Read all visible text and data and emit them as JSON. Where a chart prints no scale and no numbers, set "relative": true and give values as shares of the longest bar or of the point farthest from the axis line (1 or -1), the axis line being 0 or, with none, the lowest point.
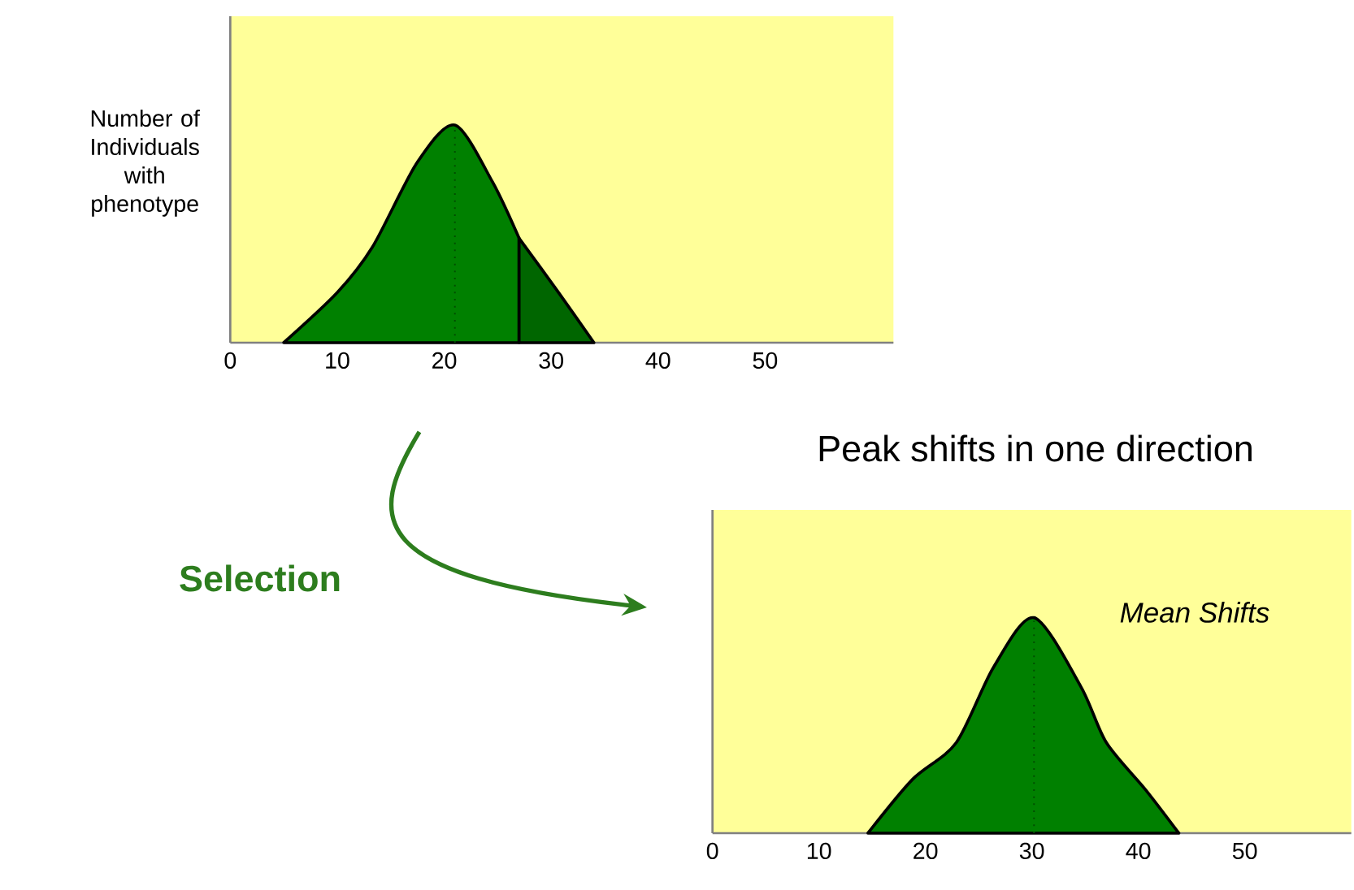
{
  "chart_data": [
    {
      "type": "area",
      "relative": true,
      "ylabel": "Number of Individuals with phenotype",
      "xlim": [
        0,
        62
      ],
      "xticks": [
        0,
        10,
        20,
        30,
        40,
        50
      ],
      "series": [
        {
          "color": "#008000",
          "x": [
            5,
            10,
            13.3,
            17.5,
            21,
            24.5,
            27
          ],
          "values": [
            0,
            0.23,
            0.44,
            0.83,
            1,
            0.74,
            0.48
          ]
        },
        {
          "color": "#006600",
          "x": [
            27,
            30.7,
            34
          ],
          "values": [
            0.48,
            0.23,
            0
          ]
        }
      ],
      "ref_lines": [
        {
          "axis": "x",
          "value": 21,
          "color": "#004d00",
          "line_style": "dotted"
        }
      ]
    },
    {
      "type": "area",
      "relative": true,
      "title": "Peak shifts in one direction",
      "xlim": [
        0,
        60
      ],
      "xticks": [
        0,
        10,
        20,
        30,
        40,
        50
      ],
      "series": [
        {
          "color": "#008000",
          "x": [
            14.6,
            18.8,
            22.9,
            26.4,
            30.2,
            34.6,
            37,
            40.7,
            43.8
          ],
          "values": [
            0,
            0.25,
            0.42,
            0.77,
            1,
            0.68,
            0.42,
            0.2,
            0
          ]
        }
      ],
      "ref_lines": [
        {
          "axis": "x",
          "value": 30.2,
          "color": "#004d00",
          "line_style": "dotted"
        }
      ],
      "annotations": [
        "Selection",
        "Mean Shifts"
      ]
    }
  ]
}
